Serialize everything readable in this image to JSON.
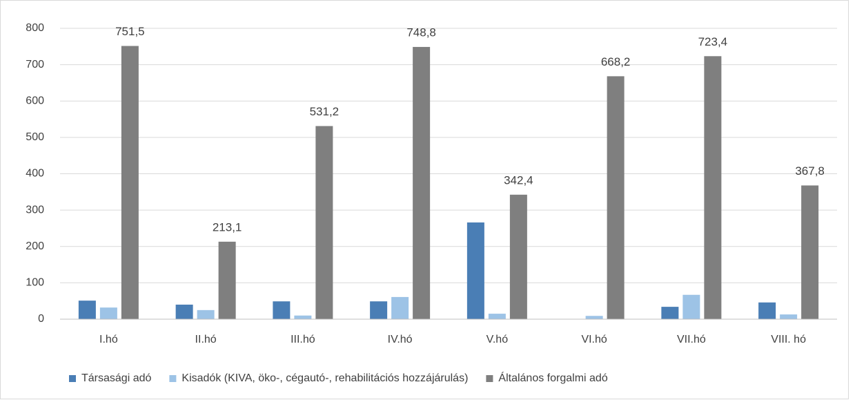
{
  "chart_data": {
    "type": "bar",
    "categories": [
      "I.hó",
      "II.hó",
      "III.hó",
      "IV.hó",
      "V.hó",
      "VI.hó",
      "VII.hó",
      "VIII. hó"
    ],
    "series": [
      {
        "name": "Társasági adó",
        "color": "#4a7eb5",
        "values": [
          51,
          40,
          49,
          49,
          266,
          0,
          34,
          46
        ]
      },
      {
        "name": "Kisadók (KIVA, öko-, cégautó-, rehabilitációs hozzájárulás)",
        "color": "#9dc3e6",
        "values": [
          32,
          25,
          10,
          61,
          15,
          9,
          67,
          13
        ]
      },
      {
        "name": "Általános forgalmi adó",
        "color": "#7f7f7f",
        "values": [
          751.5,
          213.1,
          531.2,
          748.8,
          342.4,
          668.2,
          723.4,
          367.8
        ],
        "value_labels": [
          "751,5",
          "213,1",
          "531,2",
          "748,8",
          "342,4",
          "668,2",
          "723,4",
          "367,8"
        ]
      }
    ],
    "ylim": [
      0,
      800
    ],
    "yticks": [
      0,
      100,
      200,
      300,
      400,
      500,
      600,
      700,
      800
    ],
    "grid": true,
    "legend": "bottom"
  }
}
